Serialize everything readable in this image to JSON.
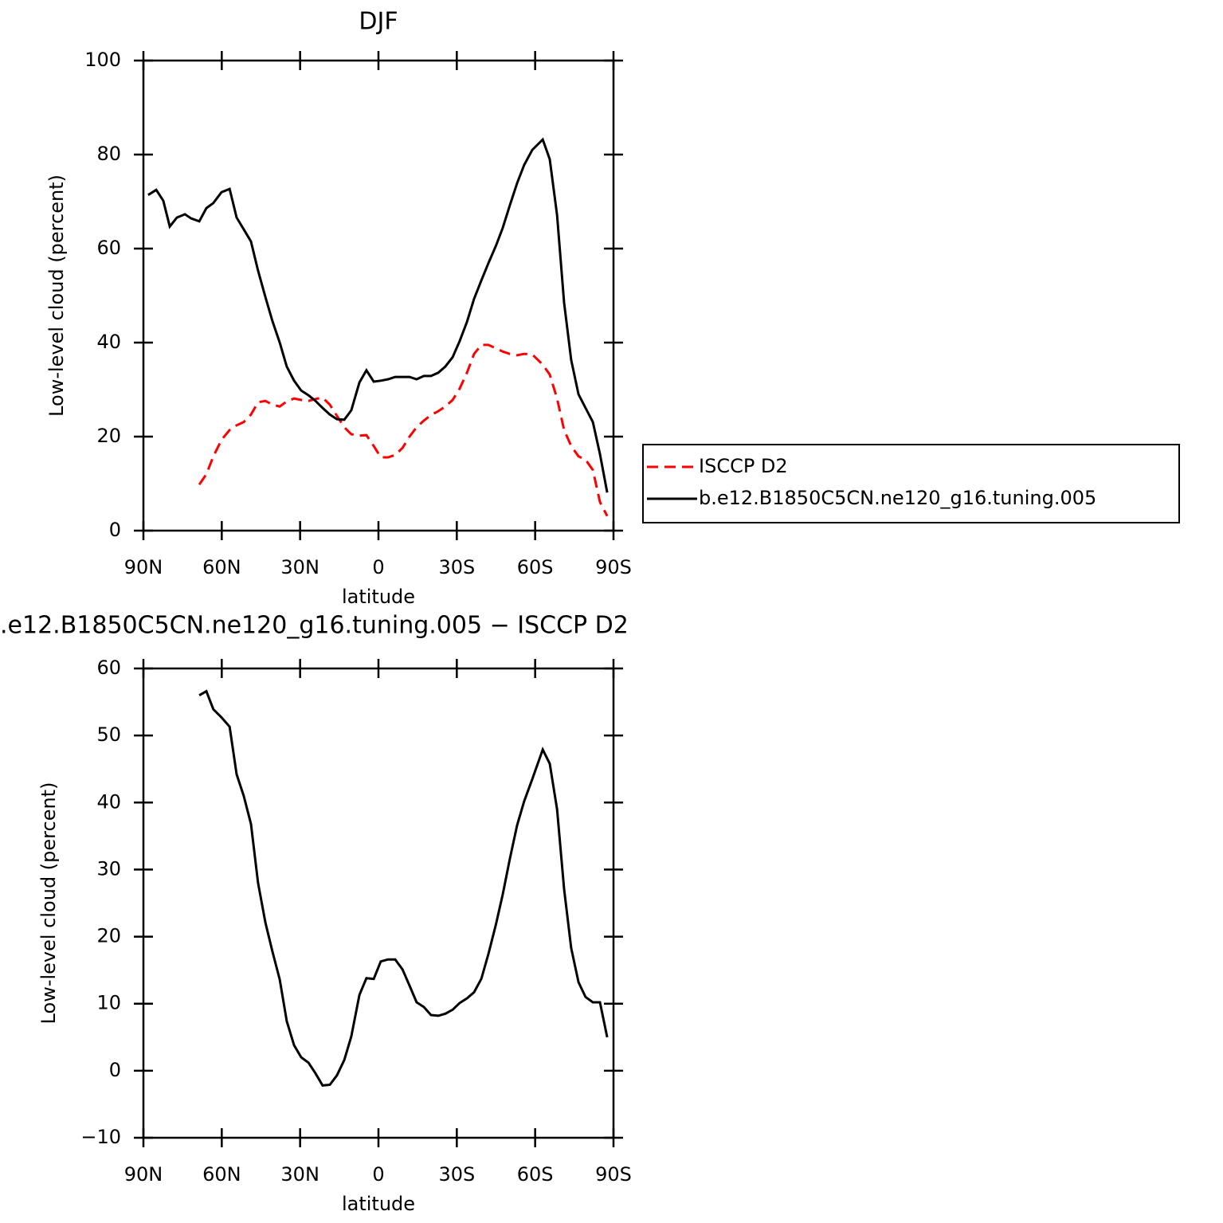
{
  "chart_data": [
    {
      "type": "line",
      "title": "DJF",
      "x_label": "latitude",
      "y_label": "Low-level cloud (percent)",
      "xlim": [
        90,
        -90
      ],
      "ylim": [
        0,
        100
      ],
      "xticks": [
        {
          "value": 90,
          "label": "90N"
        },
        {
          "value": 60,
          "label": "60N"
        },
        {
          "value": 30,
          "label": "30N"
        },
        0,
        {
          "value": -30,
          "label": "30S"
        },
        {
          "value": -60,
          "label": "60S"
        },
        {
          "value": -90,
          "label": "90S"
        }
      ],
      "yticks": [
        0,
        20,
        40,
        60,
        80,
        100
      ],
      "legend": "right",
      "x": [
        88.2,
        85.1,
        82.4,
        79.9,
        77.2,
        74.1,
        71.7,
        68.6,
        65.9,
        63.2,
        60.1,
        57.0,
        54.3,
        51.6,
        48.8,
        46.1,
        43.3,
        40.6,
        37.8,
        35.1,
        32.3,
        29.6,
        26.8,
        24.1,
        21.4,
        18.6,
        15.9,
        13.1,
        10.4,
        7.3,
        4.6,
        1.8,
        -0.9,
        -3.7,
        -6.4,
        -9.2,
        -11.9,
        -14.6,
        -17.4,
        -20.1,
        -22.9,
        -25.6,
        -28.4,
        -31.1,
        -33.9,
        -36.6,
        -39.4,
        -42.1,
        -44.9,
        -47.6,
        -50.3,
        -53.1,
        -55.8,
        -58.9,
        -62.9,
        -65.6,
        -68.4,
        -71.1,
        -73.8,
        -76.6,
        -79.3,
        -82.1,
        -84.8,
        -87.6
      ],
      "series": [
        {
          "name": "ISCCP D2",
          "color": "#ff0000",
          "style": "dashed",
          "values": [
            null,
            null,
            null,
            null,
            null,
            null,
            null,
            9.8,
            12.0,
            15.8,
            19.3,
            21.4,
            22.4,
            23.1,
            24.7,
            27.3,
            27.6,
            26.8,
            26.4,
            27.5,
            28.1,
            27.8,
            27.6,
            28.0,
            28.3,
            26.8,
            24.4,
            22.0,
            20.5,
            20.2,
            20.3,
            18.0,
            15.6,
            15.6,
            16.1,
            17.6,
            20.0,
            22.0,
            23.4,
            24.6,
            25.4,
            26.4,
            27.8,
            30.2,
            33.6,
            37.6,
            39.5,
            39.5,
            38.8,
            38.1,
            37.6,
            37.3,
            37.6,
            37.5,
            35.3,
            33.2,
            28.1,
            21.4,
            18.0,
            15.8,
            15.1,
            12.9,
            6.1,
            3.1
          ]
        },
        {
          "name": "b.e12.B1850C5CN.ne120_g16.tuning.005",
          "color": "#000000",
          "style": "solid",
          "values": [
            71.4,
            72.5,
            70.2,
            64.7,
            66.6,
            67.3,
            66.4,
            65.8,
            68.6,
            69.7,
            72.0,
            72.7,
            66.6,
            64.1,
            61.5,
            55.3,
            49.7,
            44.6,
            40.0,
            34.9,
            31.9,
            29.8,
            28.8,
            27.6,
            26.1,
            24.7,
            23.7,
            23.6,
            25.6,
            31.5,
            34.1,
            31.7,
            31.9,
            32.2,
            32.7,
            32.7,
            32.7,
            32.2,
            32.9,
            32.9,
            33.6,
            34.9,
            36.9,
            40.3,
            44.4,
            49.3,
            53.2,
            56.9,
            60.5,
            64.4,
            69.2,
            73.9,
            77.8,
            81.0,
            83.2,
            79.0,
            67.1,
            48.5,
            36.3,
            29.0,
            26.1,
            23.1,
            16.3,
            8.1
          ]
        }
      ]
    },
    {
      "type": "line",
      "title": ".e12.B1850C5CN.ne120_g16.tuning.005 − ISCCP D2",
      "x_label": "latitude",
      "y_label": "Low-level cloud (percent)",
      "xlim": [
        90,
        -90
      ],
      "ylim": [
        -10,
        60
      ],
      "xticks": [
        {
          "value": 90,
          "label": "90N"
        },
        {
          "value": 60,
          "label": "60N"
        },
        {
          "value": 30,
          "label": "30N"
        },
        0,
        {
          "value": -30,
          "label": "30S"
        },
        {
          "value": -60,
          "label": "60S"
        },
        {
          "value": -90,
          "label": "90S"
        }
      ],
      "yticks": [
        {
          "value": -10,
          "label": "−10"
        },
        0,
        10,
        20,
        30,
        40,
        50,
        60
      ],
      "x": [
        88.2,
        85.1,
        82.4,
        79.9,
        77.2,
        74.1,
        71.7,
        68.6,
        65.9,
        63.2,
        60.1,
        57.0,
        54.3,
        51.6,
        48.8,
        46.1,
        43.3,
        40.6,
        37.8,
        35.1,
        32.3,
        29.6,
        26.8,
        24.1,
        21.4,
        18.6,
        15.9,
        13.1,
        10.4,
        7.3,
        4.6,
        1.8,
        -0.9,
        -3.7,
        -6.4,
        -9.2,
        -11.9,
        -14.6,
        -17.4,
        -20.1,
        -22.9,
        -25.6,
        -28.4,
        -31.1,
        -33.9,
        -36.6,
        -39.4,
        -42.1,
        -44.9,
        -47.6,
        -50.3,
        -53.1,
        -55.8,
        -58.9,
        -62.9,
        -65.6,
        -68.4,
        -71.1,
        -73.8,
        -76.6,
        -79.3,
        -82.1,
        -84.8,
        -87.6
      ],
      "color": "#000000",
      "values": [
        null,
        null,
        null,
        null,
        null,
        null,
        null,
        56.0,
        56.6,
        53.9,
        52.7,
        51.3,
        44.2,
        41.0,
        36.8,
        28.0,
        22.1,
        17.8,
        13.6,
        7.4,
        3.8,
        2.0,
        1.2,
        -0.4,
        -2.2,
        -2.1,
        -0.7,
        1.6,
        5.1,
        11.3,
        13.8,
        13.7,
        16.3,
        16.6,
        16.6,
        15.1,
        12.7,
        10.2,
        9.5,
        8.3,
        8.2,
        8.5,
        9.1,
        10.1,
        10.8,
        11.7,
        13.7,
        17.4,
        21.7,
        26.3,
        31.6,
        36.6,
        40.2,
        43.5,
        47.9,
        45.8,
        39.0,
        27.1,
        18.3,
        13.2,
        11.0,
        10.2,
        10.2,
        5.0
      ]
    }
  ]
}
